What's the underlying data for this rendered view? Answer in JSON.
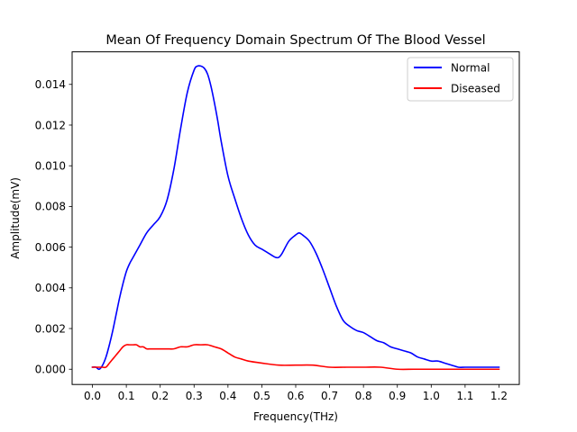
{
  "chart_data": {
    "type": "line",
    "title": "Mean Of Frequency Domain Spectrum Of The Blood Vessel",
    "xlabel": "Frequency(THz)",
    "ylabel": "Amplitude(mV)",
    "xlim": [
      -0.06,
      1.26
    ],
    "ylim": [
      -0.00075,
      0.0156
    ],
    "xticks": [
      "0.0",
      "0.1",
      "0.2",
      "0.3",
      "0.4",
      "0.5",
      "0.6",
      "0.7",
      "0.8",
      "0.9",
      "1.0",
      "1.1",
      "1.2"
    ],
    "yticks": [
      "0.000",
      "0.002",
      "0.004",
      "0.006",
      "0.008",
      "0.010",
      "0.012",
      "0.014"
    ],
    "grid": false,
    "legend_position": "top-right",
    "series": [
      {
        "name": "Normal",
        "color": "#0000ff",
        "x": [
          0.0,
          0.01,
          0.02,
          0.03,
          0.04,
          0.05,
          0.06,
          0.07,
          0.08,
          0.09,
          0.1,
          0.11,
          0.12,
          0.14,
          0.16,
          0.18,
          0.2,
          0.22,
          0.24,
          0.26,
          0.28,
          0.3,
          0.31,
          0.32,
          0.33,
          0.34,
          0.35,
          0.36,
          0.37,
          0.38,
          0.4,
          0.42,
          0.44,
          0.46,
          0.48,
          0.5,
          0.52,
          0.54,
          0.55,
          0.56,
          0.58,
          0.6,
          0.61,
          0.62,
          0.64,
          0.66,
          0.68,
          0.7,
          0.72,
          0.74,
          0.76,
          0.78,
          0.8,
          0.82,
          0.84,
          0.86,
          0.88,
          0.9,
          0.92,
          0.94,
          0.96,
          0.98,
          1.0,
          1.02,
          1.04,
          1.06,
          1.08,
          1.1,
          1.12,
          1.14,
          1.16,
          1.18,
          1.2
        ],
        "y": [
          0.0001,
          0.0001,
          0.0,
          0.0002,
          0.0006,
          0.0012,
          0.0019,
          0.0027,
          0.0035,
          0.0042,
          0.0048,
          0.0052,
          0.0055,
          0.0061,
          0.0067,
          0.0071,
          0.0075,
          0.0083,
          0.0098,
          0.0118,
          0.0136,
          0.0147,
          0.0149,
          0.0149,
          0.0148,
          0.0145,
          0.0139,
          0.0131,
          0.0122,
          0.0112,
          0.0095,
          0.0084,
          0.0074,
          0.0066,
          0.0061,
          0.0059,
          0.0057,
          0.0055,
          0.0055,
          0.0057,
          0.0063,
          0.0066,
          0.0067,
          0.0066,
          0.0063,
          0.0057,
          0.0049,
          0.004,
          0.0031,
          0.0024,
          0.0021,
          0.0019,
          0.0018,
          0.0016,
          0.0014,
          0.0013,
          0.0011,
          0.001,
          0.0009,
          0.0008,
          0.0006,
          0.0005,
          0.0004,
          0.0004,
          0.0003,
          0.0002,
          0.0001,
          0.0001,
          0.0001,
          0.0001,
          0.0001,
          0.0001,
          0.0001
        ]
      },
      {
        "name": "Diseased",
        "color": "#ff0000",
        "x": [
          0.0,
          0.01,
          0.02,
          0.03,
          0.04,
          0.05,
          0.06,
          0.07,
          0.08,
          0.09,
          0.1,
          0.11,
          0.12,
          0.13,
          0.14,
          0.15,
          0.16,
          0.17,
          0.18,
          0.2,
          0.22,
          0.24,
          0.26,
          0.28,
          0.3,
          0.32,
          0.34,
          0.36,
          0.38,
          0.4,
          0.42,
          0.44,
          0.46,
          0.5,
          0.55,
          0.6,
          0.65,
          0.7,
          0.75,
          0.8,
          0.85,
          0.9,
          0.95,
          1.0,
          1.05,
          1.1,
          1.15,
          1.2
        ],
        "y": [
          0.0001,
          0.0001,
          0.0001,
          0.0001,
          0.0001,
          0.0003,
          0.0005,
          0.0007,
          0.0009,
          0.0011,
          0.0012,
          0.0012,
          0.0012,
          0.0012,
          0.0011,
          0.0011,
          0.001,
          0.001,
          0.001,
          0.001,
          0.001,
          0.001,
          0.0011,
          0.0011,
          0.0012,
          0.0012,
          0.0012,
          0.0011,
          0.001,
          0.0008,
          0.0006,
          0.0005,
          0.0004,
          0.0003,
          0.0002,
          0.0002,
          0.0002,
          0.0001,
          0.0001,
          0.0001,
          0.0001,
          0.0,
          0.0,
          0.0,
          0.0,
          0.0,
          0.0,
          0.0
        ]
      }
    ]
  }
}
